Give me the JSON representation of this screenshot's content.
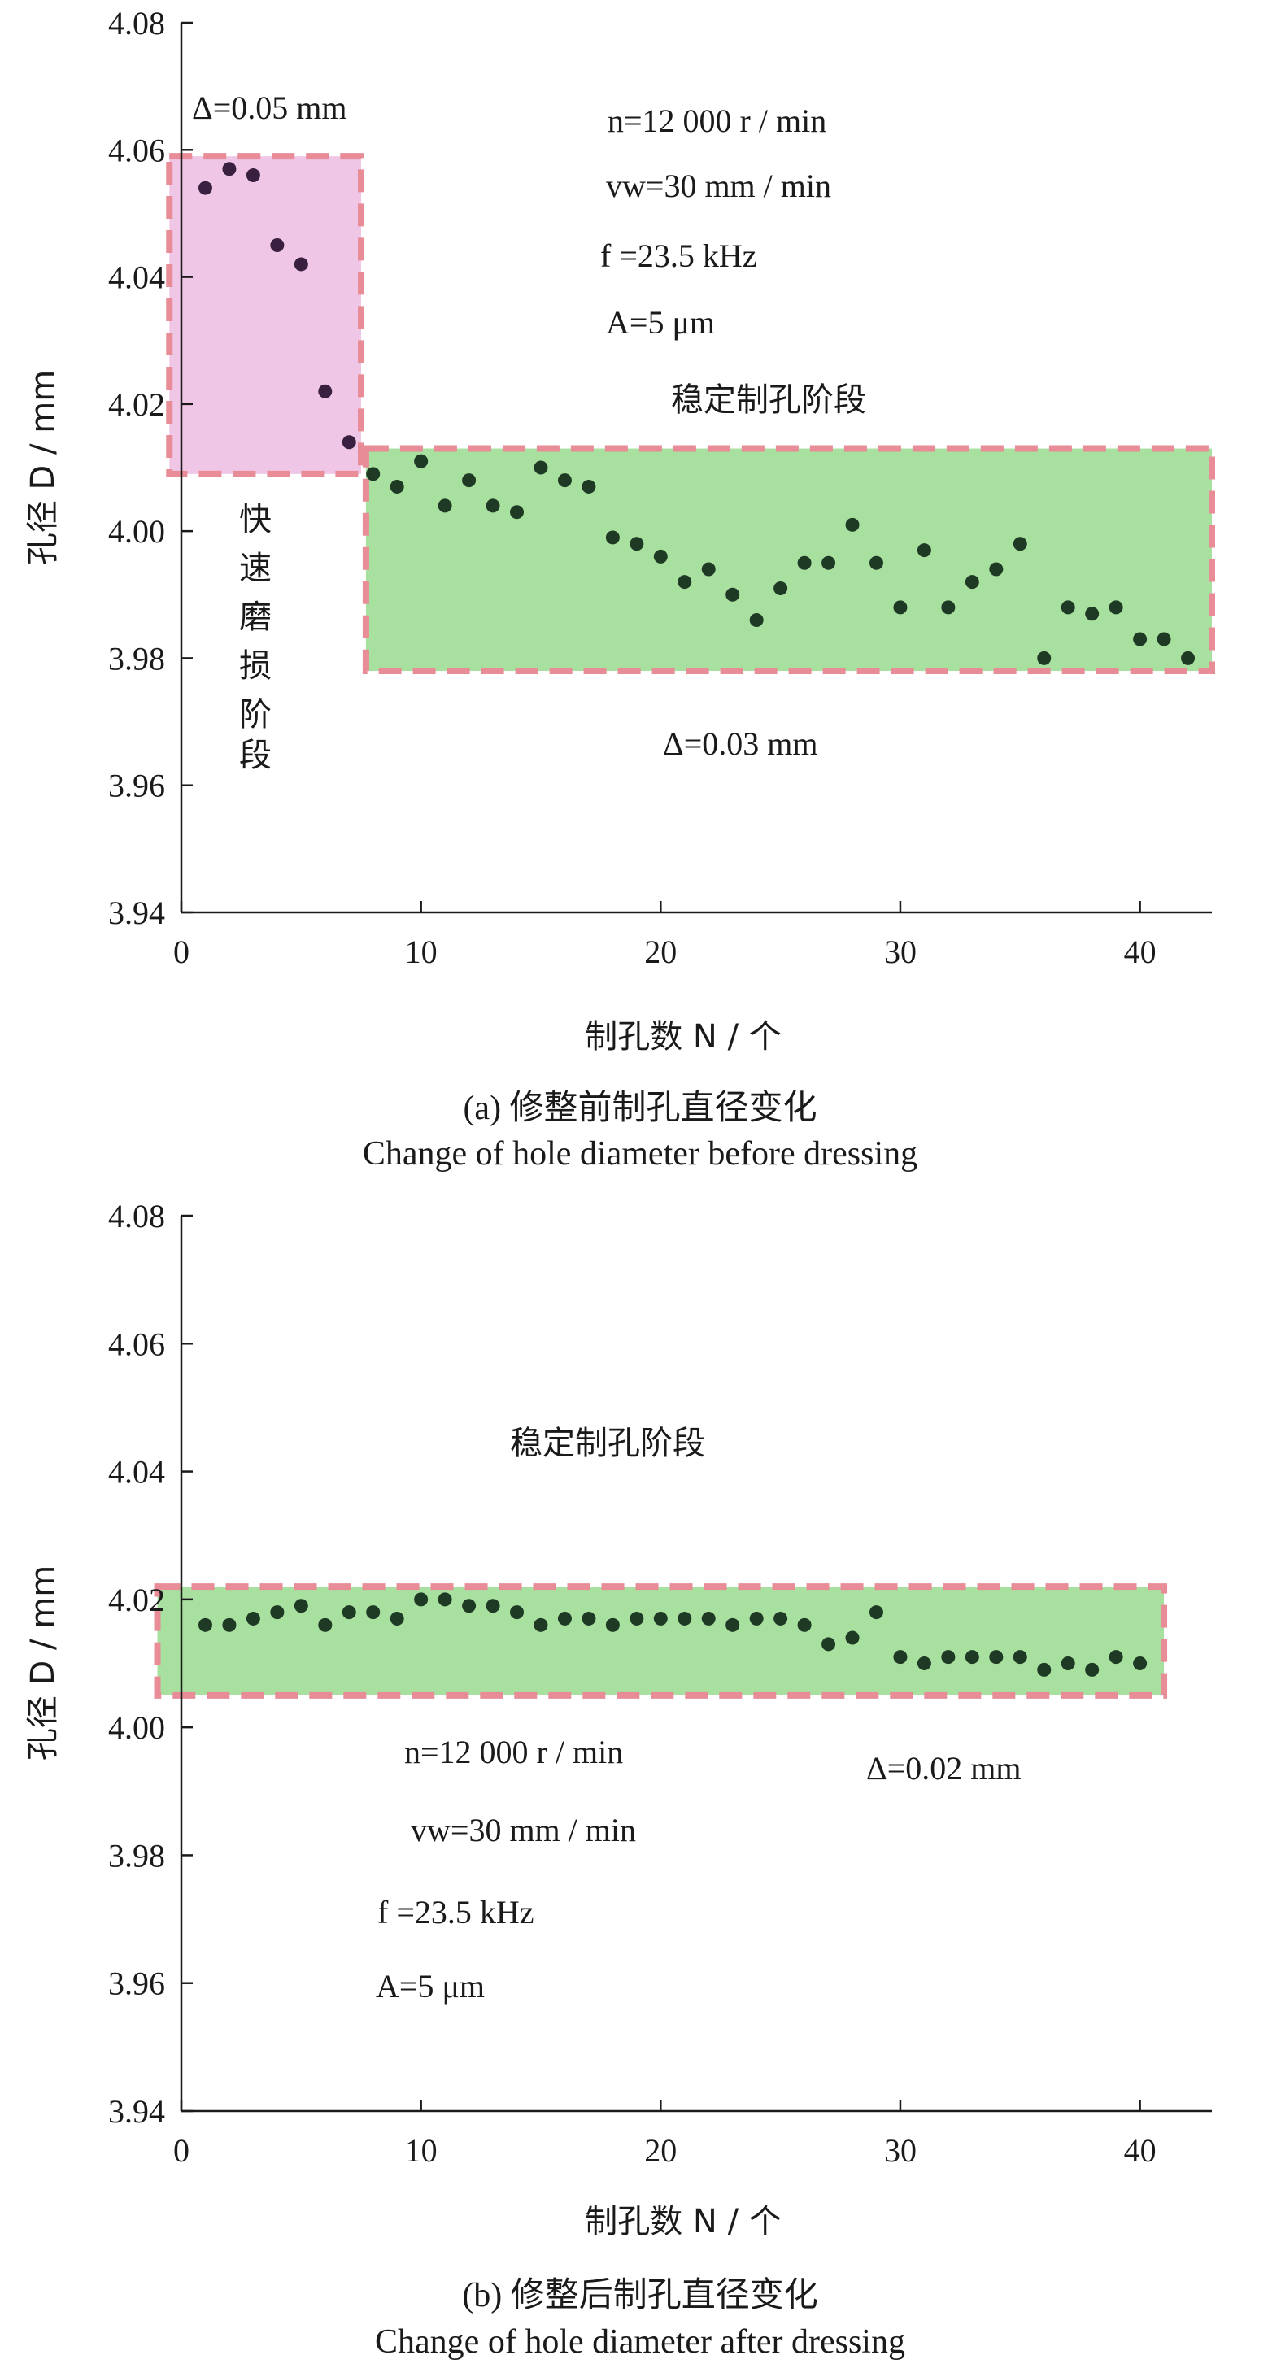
{
  "chart_data": [
    {
      "type": "scatter",
      "panel_caption": "(a) 修整前制孔直径变化",
      "panel_caption_en": "Change of hole diameter before dressing",
      "xlabel": "制孔数 N / 个",
      "ylabel": "孔径 D / mm",
      "xlim": [
        0,
        43
      ],
      "ylim": [
        3.94,
        4.08
      ],
      "xticks": [
        "0",
        "10",
        "20",
        "30",
        "40"
      ],
      "yticks": [
        "3.94",
        "3.96",
        "3.98",
        "4.00",
        "4.02",
        "4.04",
        "4.06",
        "4.08"
      ],
      "series": [
        {
          "color": "#3a2040",
          "x": [
            1,
            2,
            3,
            4,
            5,
            6,
            7
          ],
          "y": [
            4.054,
            4.057,
            4.056,
            4.045,
            4.042,
            4.022,
            4.014
          ]
        },
        {
          "color": "#1f3a24",
          "x": [
            8,
            9,
            10,
            11,
            12,
            13,
            14,
            15,
            16,
            17,
            18,
            19,
            20,
            21,
            22,
            23,
            24,
            25,
            26,
            27,
            28,
            29,
            30,
            31,
            32,
            33,
            34,
            35,
            36,
            37,
            38,
            39,
            40,
            41,
            42
          ],
          "y": [
            4.009,
            4.007,
            4.011,
            4.004,
            4.008,
            4.004,
            4.003,
            4.01,
            4.008,
            4.007,
            3.999,
            3.998,
            3.996,
            3.992,
            3.994,
            3.99,
            3.986,
            3.991,
            3.995,
            3.995,
            4.001,
            3.995,
            3.988,
            3.997,
            3.988,
            3.992,
            3.994,
            3.998,
            3.98,
            3.988,
            3.987,
            3.988,
            3.983,
            3.983,
            3.98
          ]
        }
      ],
      "regions": [
        {
          "x": [
            -0.5,
            7.5
          ],
          "y": [
            4.009,
            4.059
          ],
          "fill": "#f0c6e6"
        },
        {
          "x": [
            7.7,
            43.0
          ],
          "y": [
            3.978,
            4.013
          ],
          "fill": "#a8e0a0"
        }
      ],
      "annotations": {
        "range_fast": "Δ=0.05 mm",
        "range_stable": "Δ=0.03 mm",
        "stable_label": "稳定制孔阶段",
        "fast_label_chars": [
          "快",
          "速",
          "磨",
          "损",
          "阶",
          "段"
        ],
        "params": [
          "n=12 000 r / min",
          "vw=30 mm / min",
          "f =23.5 kHz",
          "A=5 μm"
        ]
      }
    },
    {
      "type": "scatter",
      "panel_caption": "(b) 修整后制孔直径变化",
      "panel_caption_en": "Change of hole diameter after dressing",
      "xlabel": "制孔数 N / 个",
      "ylabel": "孔径 D / mm",
      "xlim": [
        0,
        43
      ],
      "ylim": [
        3.94,
        4.08
      ],
      "xticks": [
        "0",
        "10",
        "20",
        "30",
        "40"
      ],
      "yticks": [
        "3.94",
        "3.96",
        "3.98",
        "4.00",
        "4.02",
        "4.04",
        "4.06",
        "4.08"
      ],
      "series": [
        {
          "color": "#1f3a24",
          "x": [
            1,
            2,
            3,
            4,
            5,
            6,
            7,
            8,
            9,
            10,
            11,
            12,
            13,
            14,
            15,
            16,
            17,
            18,
            19,
            20,
            21,
            22,
            23,
            24,
            25,
            26,
            27,
            28,
            29,
            30,
            31,
            32,
            33,
            34,
            35,
            36,
            37,
            38,
            39,
            40
          ],
          "y": [
            4.016,
            4.016,
            4.017,
            4.018,
            4.019,
            4.016,
            4.018,
            4.018,
            4.017,
            4.02,
            4.02,
            4.019,
            4.019,
            4.018,
            4.016,
            4.017,
            4.017,
            4.016,
            4.017,
            4.017,
            4.017,
            4.017,
            4.016,
            4.017,
            4.017,
            4.016,
            4.013,
            4.014,
            4.018,
            4.011,
            4.01,
            4.011,
            4.011,
            4.011,
            4.011,
            4.009,
            4.01,
            4.009,
            4.011,
            4.01
          ]
        }
      ],
      "regions": [
        {
          "x": [
            -1.0,
            41.0
          ],
          "y": [
            4.005,
            4.022
          ],
          "fill": "#a8e0a0"
        }
      ],
      "annotations": {
        "range_stable": "Δ=0.02 mm",
        "stable_label": "稳定制孔阶段",
        "params": [
          "n=12 000 r / min",
          "vw=30 mm / min",
          "f =23.5 kHz",
          "A=5 μm"
        ]
      }
    }
  ]
}
